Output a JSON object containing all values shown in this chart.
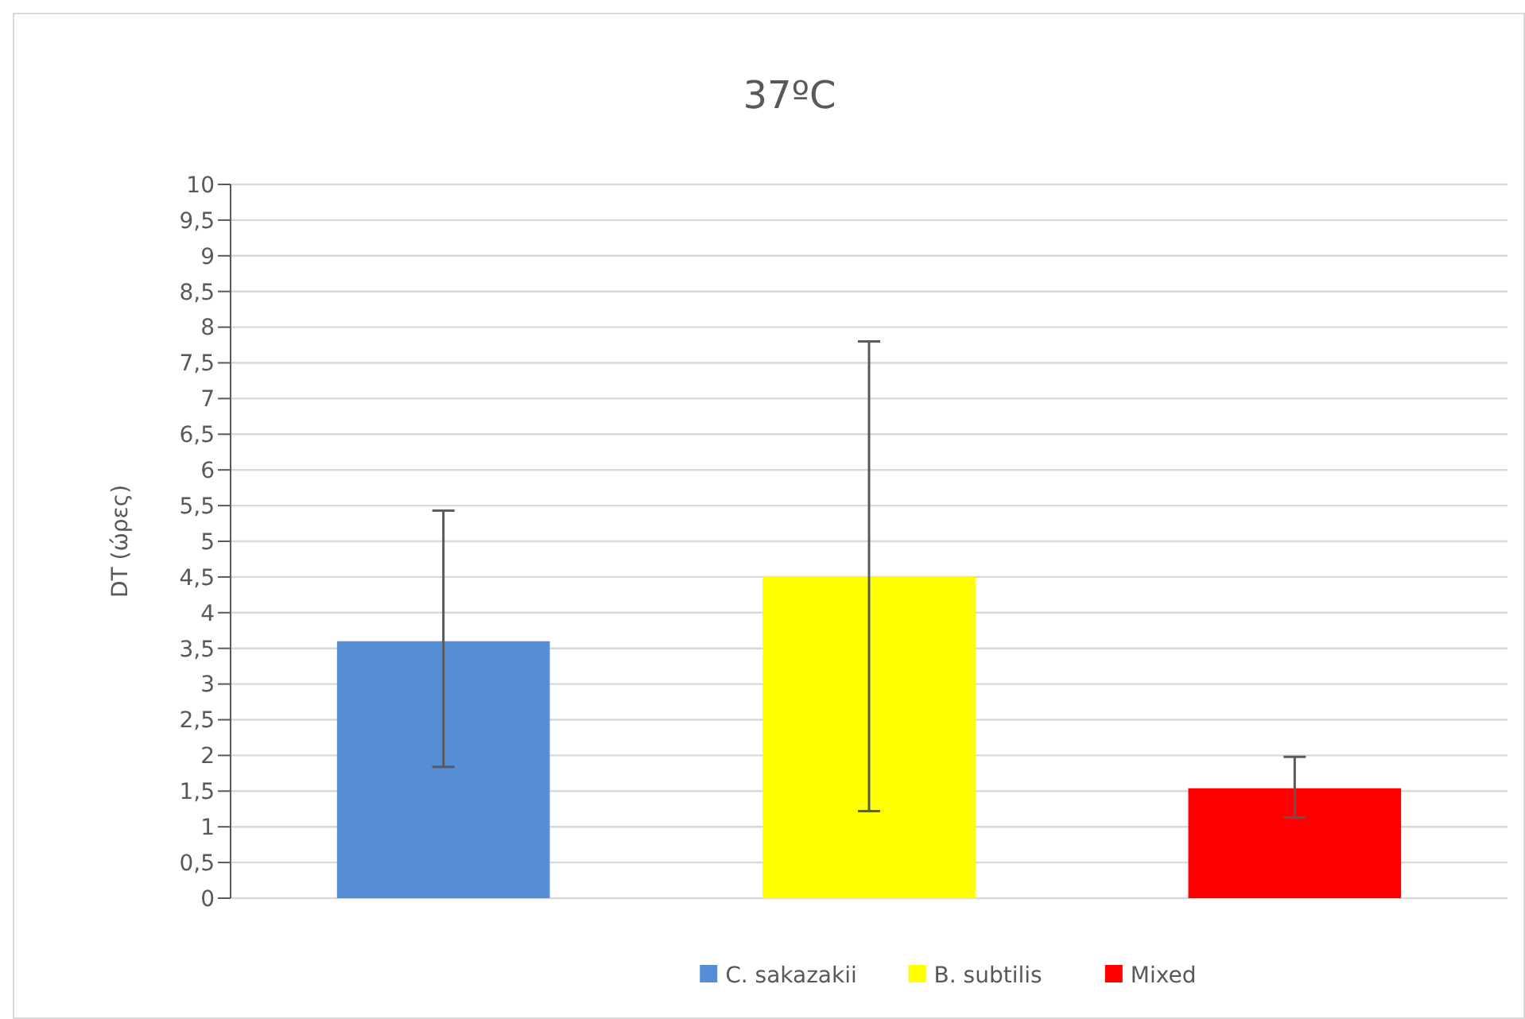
{
  "chart_data": {
    "type": "bar",
    "title": "37ºC",
    "ylabel": "DT (ώρες)",
    "categories": [
      null
    ],
    "series": [
      {
        "name": "C. sakazakii",
        "color": "#558ed5",
        "values": [
          3.6
        ],
        "errors": [
          [
            1.84,
            5.43
          ]
        ]
      },
      {
        "name": "B. subtilis",
        "color": "#ffff00",
        "values": [
          4.5
        ],
        "errors": [
          [
            1.22,
            7.8
          ]
        ]
      },
      {
        "name": "Mixed",
        "color": "#ff0000",
        "values": [
          1.54
        ],
        "errors": [
          [
            1.13,
            1.98
          ]
        ]
      }
    ],
    "ylim": [
      0,
      10
    ],
    "yticks": [
      0,
      {
        "value": 0.5,
        "label": "0,5"
      },
      1,
      {
        "value": 1.5,
        "label": "1,5"
      },
      2,
      {
        "value": 2.5,
        "label": "2,5"
      },
      3,
      {
        "value": 3.5,
        "label": "3,5"
      },
      4,
      {
        "value": 4.5,
        "label": "4,5"
      },
      5,
      {
        "value": 5.5,
        "label": "5,5"
      },
      6,
      {
        "value": 6.5,
        "label": "6,5"
      },
      7,
      {
        "value": 7.5,
        "label": "7,5"
      },
      8,
      {
        "value": 8.5,
        "label": "8,5"
      },
      9,
      {
        "value": 9.5,
        "label": "9,5"
      },
      10
    ],
    "grid": "y",
    "legend": "bottom"
  }
}
